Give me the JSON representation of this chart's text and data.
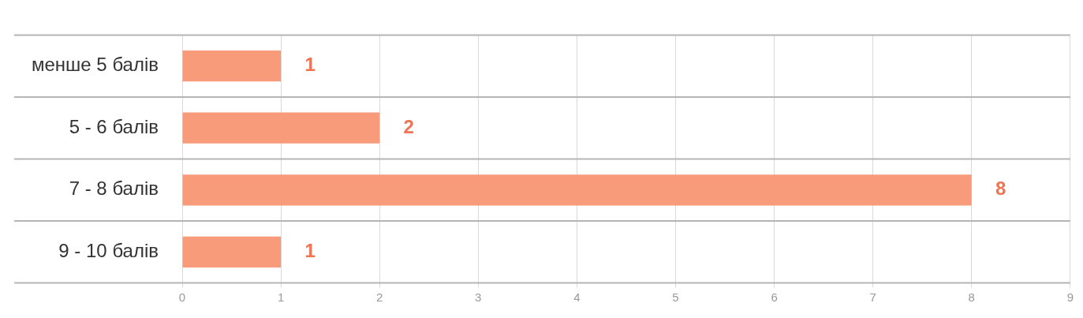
{
  "chart_data": {
    "type": "bar",
    "orientation": "horizontal",
    "categories": [
      "менше 5 балів",
      "5 - 6 балів",
      "7 - 8 балів",
      "9 - 10 балів"
    ],
    "values": [
      1,
      2,
      8,
      1
    ],
    "color": "#f79b7b",
    "xlim": [
      0,
      9
    ],
    "xticks": [
      0,
      1,
      2,
      3,
      4,
      5,
      6,
      7,
      8,
      9
    ],
    "grid": true,
    "data_labels": true,
    "legend": false
  }
}
